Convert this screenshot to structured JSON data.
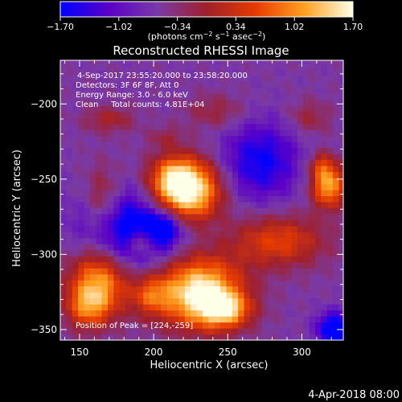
{
  "chart_data": {
    "type": "heatmap",
    "title": "Reconstructed RHESSI Image",
    "xlabel": "Heliocentric X (arcsec)",
    "ylabel": "Heliocentric Y (arcsec)",
    "xlim": [
      137,
      328
    ],
    "ylim": [
      -357,
      -171
    ],
    "x_ticks": [
      150,
      200,
      250,
      300
    ],
    "x_tick_labels": [
      "150",
      "200",
      "250",
      "300"
    ],
    "y_ticks": [
      -200,
      -250,
      -300,
      -350
    ],
    "y_tick_labels": [
      "−200",
      "−250",
      "−300",
      "−350"
    ],
    "colorbar": {
      "min": -1.7,
      "max": 1.7,
      "ticks": [
        -1.7,
        -1.02,
        -0.34,
        0.34,
        1.02,
        1.7
      ],
      "tick_labels": [
        "−1.70",
        "−1.02",
        "−0.34",
        "0.34",
        "1.02",
        "1.70"
      ],
      "unit_label": "(photons cm",
      "unit_parts": [
        "(photons cm",
        "−2",
        " s",
        "−1",
        " asec",
        "−2",
        ")"
      ],
      "colors": [
        "#0000ff",
        "#5a00c8",
        "#7a3aa6",
        "#a0202a",
        "#e63a00",
        "#ffa020",
        "#ffffe8"
      ]
    },
    "annotations": {
      "time_range": "4-Sep-2017 23:55:20.000 to 23:58:20.000",
      "detectors": "Detectors: 3F 6F 8F, Att 0",
      "energy_range": "Energy Range: 3.0 - 6.0 keV",
      "algorithm": "Clean     Total counts: 4.81E+04",
      "peak": "Position of Peak = [224,-259]"
    },
    "sources": [
      {
        "x": 221,
        "y": -257,
        "sx": 16,
        "sy": 14,
        "amp": 2.7
      },
      {
        "x": 213,
        "y": -246,
        "sx": 10,
        "sy": 8,
        "amp": 0.6
      },
      {
        "x": 231,
        "y": -325,
        "sx": 20,
        "sy": 16,
        "amp": 2.3
      },
      {
        "x": 248,
        "y": -337,
        "sx": 12,
        "sy": 8,
        "amp": 1.4
      },
      {
        "x": 198,
        "y": -327,
        "sx": 9,
        "sy": 9,
        "amp": 0.9
      },
      {
        "x": 163,
        "y": -318,
        "sx": 14,
        "sy": 16,
        "amp": 1.7
      },
      {
        "x": 155,
        "y": -335,
        "sx": 10,
        "sy": 10,
        "amp": 1.0
      },
      {
        "x": 284,
        "y": -291,
        "sx": 22,
        "sy": 12,
        "amp": 1.1
      },
      {
        "x": 318,
        "y": -254,
        "sx": 8,
        "sy": 10,
        "amp": 1.8
      },
      {
        "x": 313,
        "y": -240,
        "sx": 6,
        "sy": 6,
        "amp": 0.7
      },
      {
        "x": 192,
        "y": -291,
        "sx": 6,
        "sy": 6,
        "amp": 1.0
      },
      {
        "x": 166,
        "y": -266,
        "sx": 9,
        "sy": 16,
        "amp": 0.9
      },
      {
        "x": 170,
        "y": -210,
        "sx": 12,
        "sy": 6,
        "amp": 0.6
      },
      {
        "x": 242,
        "y": -205,
        "sx": 14,
        "sy": 8,
        "amp": 0.5
      },
      {
        "x": 305,
        "y": -209,
        "sx": 10,
        "sy": 8,
        "amp": 0.5
      },
      {
        "x": 208,
        "y": -222,
        "sx": 8,
        "sy": 5,
        "amp": 0.4
      },
      {
        "x": 183,
        "y": -282,
        "sx": 22,
        "sy": 18,
        "amp": -1.5
      },
      {
        "x": 207,
        "y": -282,
        "sx": 8,
        "sy": 8,
        "amp": -1.1
      },
      {
        "x": 272,
        "y": -238,
        "sx": 18,
        "sy": 18,
        "amp": -1.1
      },
      {
        "x": 322,
        "y": -350,
        "sx": 8,
        "sy": 8,
        "amp": -1.6
      }
    ],
    "background": -0.55,
    "grid": false,
    "footer": "4-Apr-2018 08:00"
  }
}
